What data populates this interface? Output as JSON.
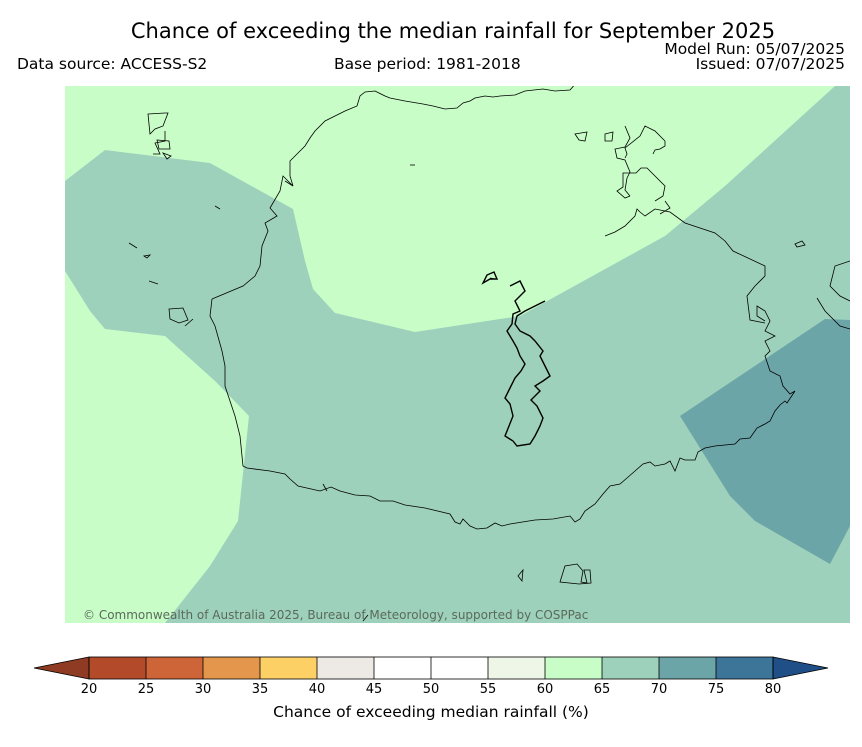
{
  "header": {
    "title": "Chance of exceeding the median rainfall for September 2025",
    "data_source": "Data source: ACCESS-S2",
    "base_period": "Base period: 1981-2018",
    "model_run": "Model Run: 05/07/2025",
    "issued": "Issued: 07/07/2025"
  },
  "map": {
    "copyright": "© Commonwealth of Australia 2025, Bureau of Meteorology, supported by COSPPac"
  },
  "colorbar": {
    "label": "Chance of exceeding median rainfall (%)",
    "ticks": [
      "20",
      "25",
      "30",
      "35",
      "40",
      "45",
      "50",
      "55",
      "60",
      "65",
      "70",
      "75",
      "80"
    ],
    "bins": [
      {
        "range": "20-25",
        "color": "#b34a2a"
      },
      {
        "range": "25-30",
        "color": "#cd6538"
      },
      {
        "range": "30-35",
        "color": "#e3964c"
      },
      {
        "range": "35-40",
        "color": "#fdd066"
      },
      {
        "range": "40-45",
        "color": "#ede9e4"
      },
      {
        "range": "45-50",
        "color": "#ffffff"
      },
      {
        "range": "50-55",
        "color": "#ffffff"
      },
      {
        "range": "55-60",
        "color": "#eef6e7"
      },
      {
        "range": "60-65",
        "color": "#c8fdc8"
      },
      {
        "range": "65-70",
        "color": "#9ed1bb"
      },
      {
        "range": "70-75",
        "color": "#6ca5a7"
      },
      {
        "range": "75-80",
        "color": "#3c7598"
      }
    ],
    "under_color": "#8f3a22",
    "over_color": "#1f4f86"
  }
}
